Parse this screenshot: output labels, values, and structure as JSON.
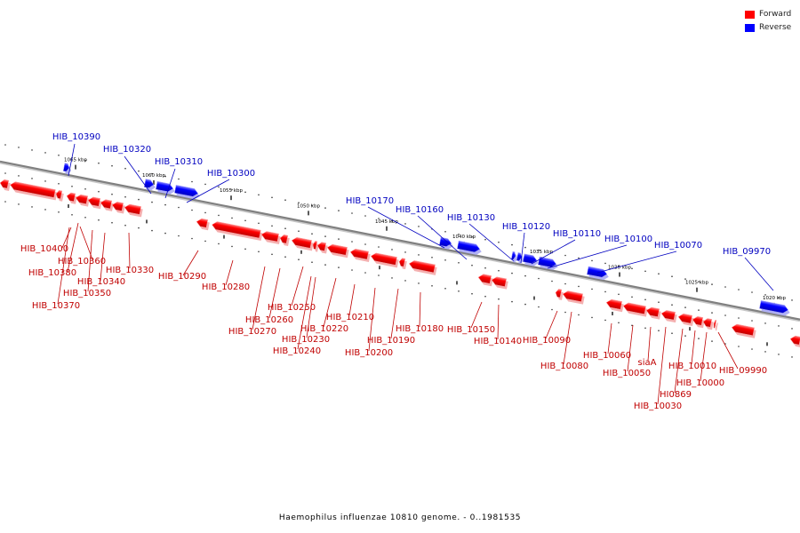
{
  "legend": {
    "forward": {
      "label": "Forward",
      "color": "#ff0000"
    },
    "reverse": {
      "label": "Reverse",
      "color": "#0000ff"
    }
  },
  "caption": "Haemophilus influenzae 10810 genome. - 0..1981535",
  "axis": {
    "tick_labels": [
      "1065 kbp",
      "1060 kbp",
      "1055 kbp",
      "1050 kbp",
      "1045 kbp",
      "1040 kbp",
      "1035 kbp",
      "1030 kbp",
      "1025 kbp",
      "1020 kbp"
    ]
  },
  "genes": {
    "reverse": [
      "HIB_10390",
      "HIB_10320",
      "HIB_10310",
      "HIB_10300",
      "HIB_10170",
      "HIB_10160",
      "HIB_10130",
      "HIB_10120",
      "HIB_10110",
      "HIB_10100",
      "HIB_10070",
      "HIB_09970"
    ],
    "forward": [
      "HIB_10400",
      "HIB_10360",
      "HIB_10380",
      "HIB_10340",
      "HIB_10330",
      "HIB_10350",
      "HIB_10370",
      "HIB_10290",
      "HIB_10280",
      "HIB_10250",
      "HIB_10260",
      "HIB_10270",
      "HIB_10220",
      "HIB_10230",
      "HIB_10240",
      "HIB_10210",
      "HIB_10180",
      "HIB_10190",
      "HIB_10200",
      "HIB_10150",
      "HIB_10140",
      "HIB_10090",
      "HIB_10080",
      "HIB_10060",
      "HIB_10050",
      "siaA",
      "HIB_10010",
      "HI0869",
      "HIB_10000",
      "HIB_10030",
      "HIB_09990"
    ]
  }
}
